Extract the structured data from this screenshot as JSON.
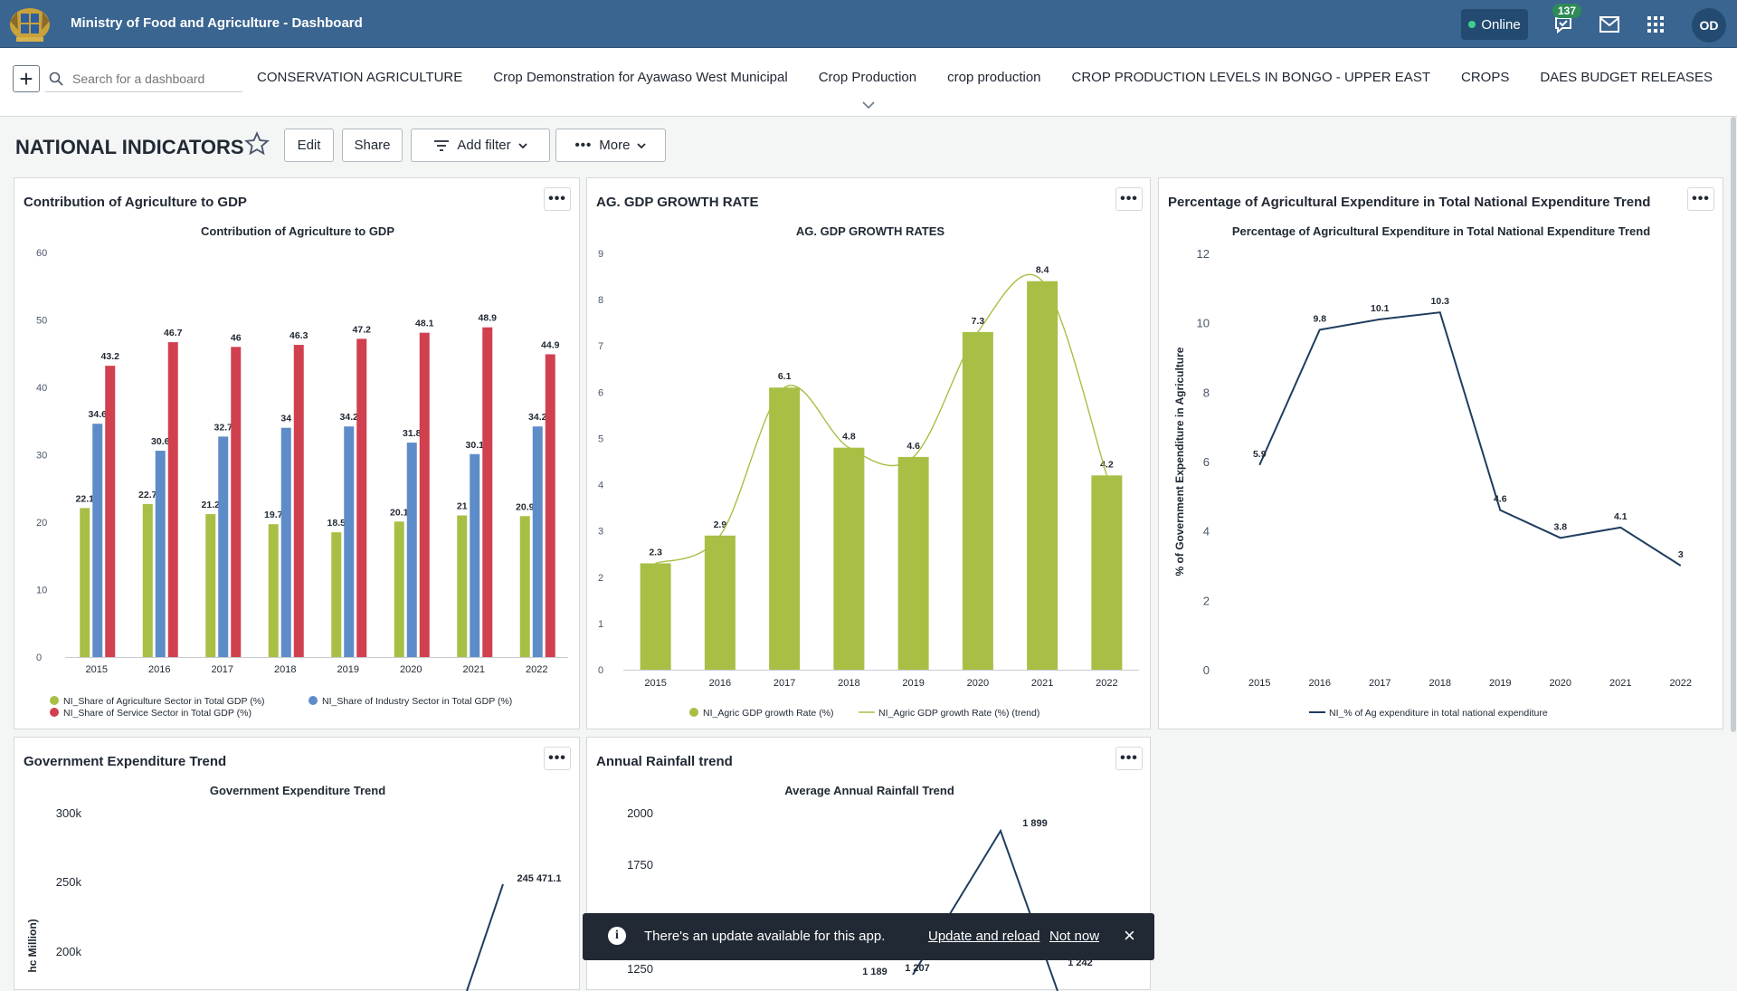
{
  "app": {
    "title": "Ministry of Food and Agriculture - Dashboard",
    "status": "Online",
    "notifications": "137",
    "avatar": "OD"
  },
  "dashbar": {
    "search_placeholder": "Search for a dashboard",
    "links": [
      "CONSERVATION AGRICULTURE",
      "Crop Demonstration for Ayawaso West Municipal",
      "Crop Production",
      "crop production",
      "CROP PRODUCTION LEVELS IN BONGO - UPPER EAST",
      "CROPS",
      "DAES BUDGET RELEASES"
    ]
  },
  "toolbar": {
    "title": "NATIONAL INDICATORS",
    "edit": "Edit",
    "share": "Share",
    "add_filter": "Add filter",
    "more": "More"
  },
  "cards": {
    "gdp_contrib": {
      "title": "Contribution of Agriculture to GDP"
    },
    "ag_growth": {
      "title": "AG. GDP GROWTH RATE"
    },
    "ag_expenditure": {
      "title": "Percentage of Agricultural Expenditure in Total National Expenditure Trend"
    },
    "gov_expenditure": {
      "title": "Government Expenditure Trend"
    },
    "rainfall": {
      "title": "Annual Rainfall trend"
    }
  },
  "toast": {
    "message": "There's an update available for this app.",
    "update": "Update and reload",
    "dismiss": "Not now"
  },
  "colors": {
    "header": "#3a6590",
    "green": "#a8bf45",
    "blue": "#5e8cc8",
    "red": "#d1404f",
    "navy": "#1f3d5f"
  },
  "chart_data": [
    {
      "type": "bar",
      "title": "Contribution of Agriculture to GDP",
      "categories": [
        "2015",
        "2016",
        "2017",
        "2018",
        "2019",
        "2020",
        "2021",
        "2022"
      ],
      "ylim": [
        0,
        60
      ],
      "yticks": [
        0,
        10,
        20,
        30,
        40,
        50,
        60
      ],
      "series": [
        {
          "name": "NI_Share of Agriculture Sector in Total GDP (%)",
          "color": "#a8bf45",
          "values": [
            22.1,
            22.7,
            21.2,
            19.7,
            18.5,
            20.1,
            21,
            20.9
          ]
        },
        {
          "name": "NI_Share of Industry Sector in Total GDP (%)",
          "color": "#5e8cc8",
          "values": [
            34.6,
            30.6,
            32.7,
            34,
            34.2,
            31.8,
            30.1,
            34.2
          ]
        },
        {
          "name": "NI_Share of Service Sector in Total GDP (%)",
          "color": "#d1404f",
          "values": [
            43.2,
            46.7,
            46,
            46.3,
            47.2,
            48.1,
            48.9,
            44.9
          ]
        }
      ]
    },
    {
      "type": "bar",
      "title": "AG. GDP GROWTH RATES",
      "categories": [
        "2015",
        "2016",
        "2017",
        "2018",
        "2019",
        "2020",
        "2021",
        "2022"
      ],
      "ylim": [
        0,
        9
      ],
      "yticks": [
        0,
        1,
        2,
        3,
        4,
        5,
        6,
        7,
        8,
        9
      ],
      "series": [
        {
          "name": "NI_Agric GDP growth Rate (%)",
          "color": "#a8bf45",
          "values": [
            2.3,
            2.9,
            6.1,
            4.8,
            4.6,
            7.3,
            8.4,
            4.2
          ]
        },
        {
          "name": "NI_Agric GDP growth Rate (%) (trend)",
          "color": "#a8bf45",
          "values": [
            2.3,
            2.9,
            6.1,
            4.8,
            4.6,
            7.3,
            8.4,
            4.2
          ]
        }
      ]
    },
    {
      "type": "line",
      "title": "Percentage of Agricultural Expenditure in Total National Expenditure Trend",
      "ylabel": "% of Government Expenditure in Agriculture",
      "categories": [
        "2015",
        "2016",
        "2017",
        "2018",
        "2019",
        "2020",
        "2021",
        "2022"
      ],
      "ylim": [
        0,
        12
      ],
      "yticks": [
        0,
        2,
        4,
        6,
        8,
        10,
        12
      ],
      "series": [
        {
          "name": "NI_% of Ag expenditure in total national expenditure",
          "color": "#1f3d5f",
          "values": [
            5.9,
            9.8,
            10.1,
            10.3,
            4.6,
            3.8,
            4.1,
            3
          ]
        }
      ]
    },
    {
      "type": "line",
      "title": "Government Expenditure Trend",
      "ylabel": "hc Million)",
      "ylim": [
        200,
        300
      ],
      "yticks": [
        "200k",
        "250k",
        "300k"
      ],
      "visible_labels": [
        "245 471.1"
      ]
    },
    {
      "type": "line",
      "title": "Average Annual Rainfall Trend",
      "ylim": [
        1250,
        2000
      ],
      "yticks": [
        "1250",
        "1750",
        "2000"
      ],
      "visible_labels": [
        "1 899",
        "1 189",
        "1 207",
        "1 242"
      ]
    }
  ]
}
